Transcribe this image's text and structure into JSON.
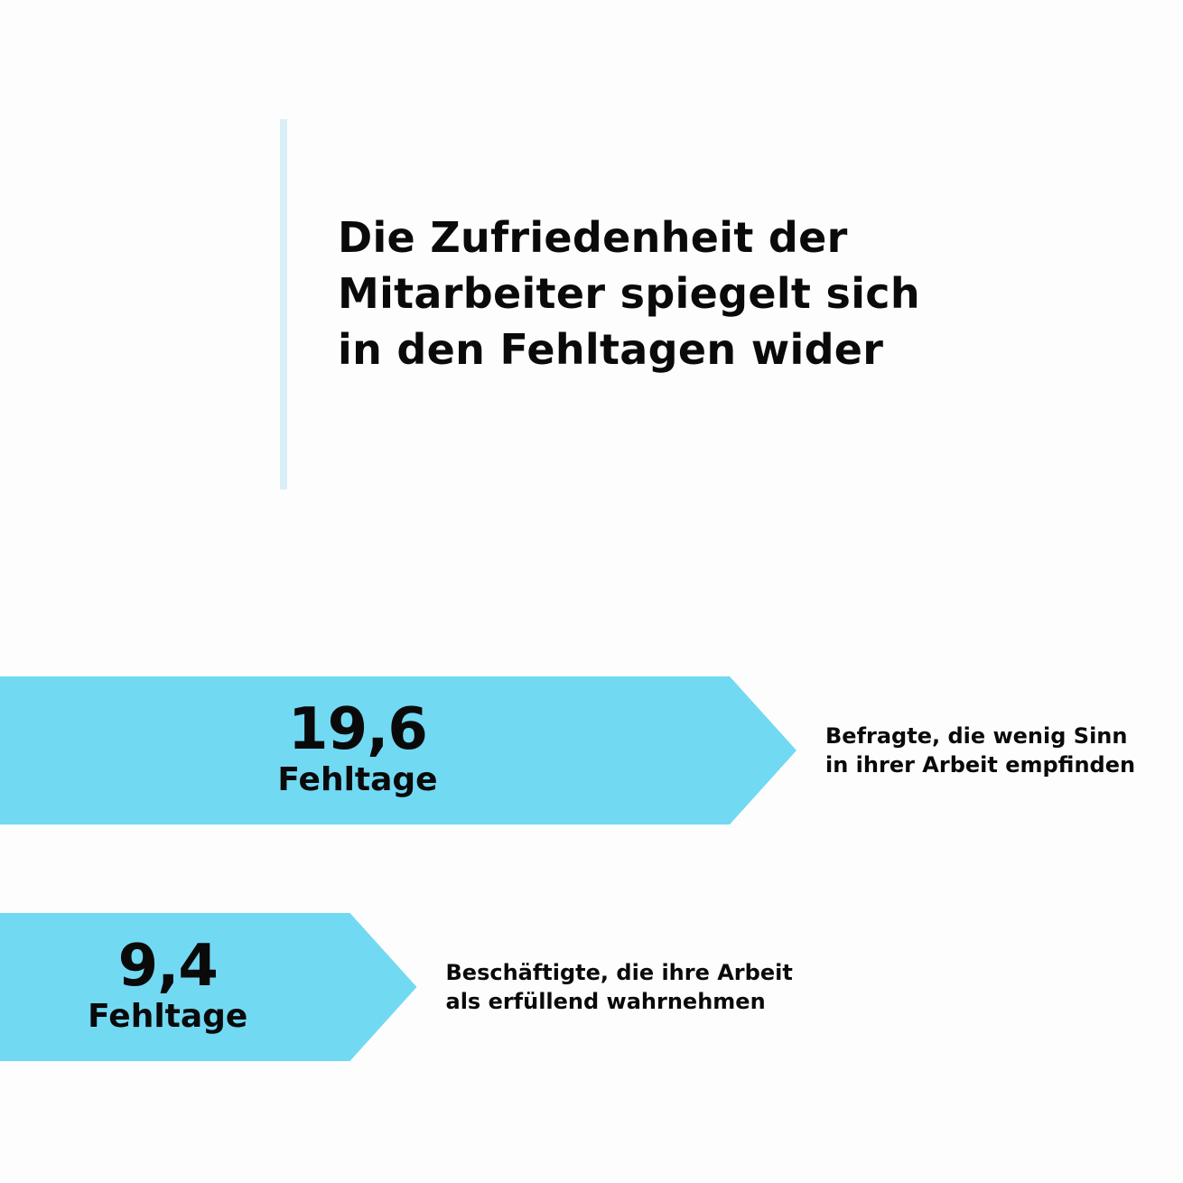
{
  "headline": "Die Zufriedenheit der\nMitarbeiter spiegelt sich\nin den Fehltagen wider",
  "colors": {
    "bar": "#72d9f3",
    "accent_line": "#d8eff7",
    "text": "#0a0a0a"
  },
  "chart_data": {
    "type": "bar",
    "orientation": "horizontal",
    "unit": "Fehltage",
    "categories": [
      "Befragte, die wenig Sinn\nin ihrer Arbeit empfinden",
      "Beschäftigte, die ihre Arbeit\nals erfüllend wahrnehmen"
    ],
    "values": [
      19.6,
      9.4
    ],
    "value_labels": [
      "19,6",
      "9,4"
    ]
  }
}
